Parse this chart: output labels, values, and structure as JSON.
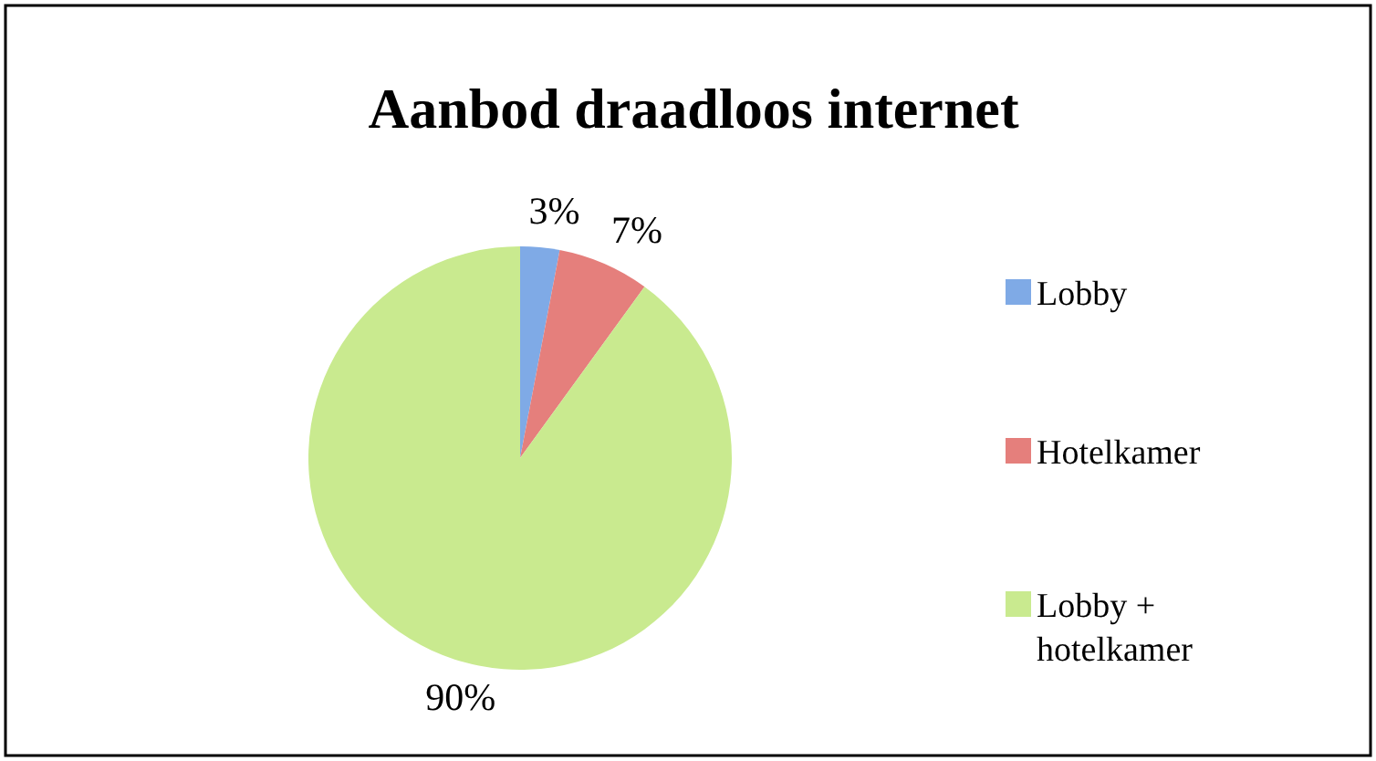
{
  "chart_data": {
    "type": "pie",
    "title": "Aanbod draadloos internet",
    "categories": [
      "Lobby",
      "Hotelkamer",
      "Lobby + hotelkamer"
    ],
    "values": [
      3,
      7,
      90
    ],
    "value_labels": [
      "3%",
      "7%",
      "90%"
    ],
    "colors": [
      "#7faae6",
      "#e57f7c",
      "#c9ea8f"
    ],
    "legend": "right"
  }
}
